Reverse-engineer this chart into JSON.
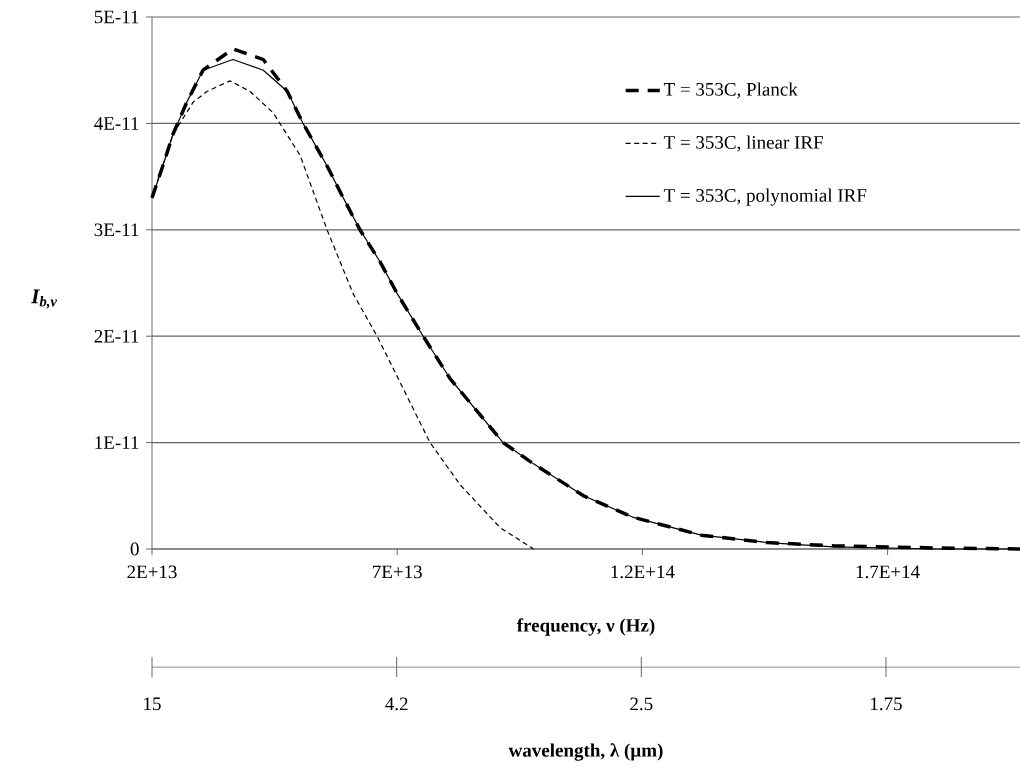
{
  "chart_data": [
    {
      "type": "line",
      "xlabel": "frequency, ν (Hz)",
      "ylabel": "I$_{b,ν}$",
      "xlim": [
        20000000000000.0,
        197000000000000.0
      ],
      "ylim": [
        0,
        5e-11
      ],
      "xticks": [
        {
          "value": 20000000000000.0,
          "label": "2E+13"
        },
        {
          "value": 70000000000000.0,
          "label": "7E+13"
        },
        {
          "value": 120000000000000.0,
          "label": "1.2E+14"
        },
        {
          "value": 170000000000000.0,
          "label": "1.7E+14"
        }
      ],
      "yticks": [
        {
          "value": 0,
          "label": "0"
        },
        {
          "value": 1e-11,
          "label": "1E-11"
        },
        {
          "value": 2e-11,
          "label": "2E-11"
        },
        {
          "value": 3e-11,
          "label": "3E-11"
        },
        {
          "value": 4e-11,
          "label": "4E-11"
        },
        {
          "value": 5e-11,
          "label": "5E-11"
        }
      ],
      "grid": "y",
      "legend": "top right",
      "series": [
        {
          "name": "T = 353C, Planck",
          "color": "#000000",
          "line_style": "dashed",
          "x": [
            20000000000000.0,
            22200000000000.0,
            24300000000000.0,
            27100000000000.0,
            30400000000000.0,
            36500000000000.0,
            42700000000000.0,
            47600000000000.0,
            50800000000000.0,
            55700000000000.0,
            59000000000000.0,
            62400000000000.0,
            66500000000000.0,
            70000000000000.0,
            75300000000000.0,
            80800000000000.0,
            91600000000000.0,
            97800000000000.0,
            108000000000000.0,
            118000000000000.0,
            132000000000000.0,
            145500000000000.0,
            159000000000000.0,
            179500000000000.0,
            197000000000000.0
          ],
          "values": [
            3.3e-11,
            3.6e-11,
            3.9e-11,
            4.2e-11,
            4.5e-11,
            4.7e-11,
            4.6e-11,
            4.3e-11,
            4e-11,
            3.6e-11,
            3.3e-11,
            3e-11,
            2.7e-11,
            2.4e-11,
            2e-11,
            1.6e-11,
            1e-11,
            8e-12,
            5e-12,
            3e-12,
            1.3e-12,
            6e-13,
            3e-13,
            1e-13,
            0
          ]
        },
        {
          "name": "T = 353C, linear IRF",
          "color": "#000000",
          "line_style": "dashed",
          "x": [
            20000000000000.0,
            24300000000000.0,
            28400000000000.0,
            31200000000000.0,
            35900000000000.0,
            40000000000000.0,
            44700000000000.0,
            50200000000000.0,
            55700000000000.0,
            61000000000000.0,
            65900000000000.0,
            76700000000000.0,
            82900000000000.0,
            91000000000000.0,
            97800000000000.0
          ],
          "values": [
            3.3e-11,
            3.9e-11,
            4.2e-11,
            4.3e-11,
            4.4e-11,
            4.3e-11,
            4.1e-11,
            3.7e-11,
            3e-11,
            2.4e-11,
            2e-11,
            1e-11,
            6e-12,
            2e-12,
            0
          ]
        },
        {
          "name": "T = 353C, polynomial IRF",
          "color": "#000000",
          "line_style": "solid",
          "x": [
            20000000000000.0,
            22200000000000.0,
            24300000000000.0,
            27100000000000.0,
            30400000000000.0,
            36500000000000.0,
            42700000000000.0,
            47600000000000.0,
            50800000000000.0,
            55700000000000.0,
            59000000000000.0,
            62400000000000.0,
            66500000000000.0,
            70000000000000.0,
            75300000000000.0,
            80800000000000.0,
            91600000000000.0,
            97800000000000.0,
            108000000000000.0,
            118000000000000.0,
            132000000000000.0,
            145500000000000.0,
            159000000000000.0,
            179500000000000.0,
            197000000000000.0
          ],
          "values": [
            3.3e-11,
            3.6e-11,
            3.9e-11,
            4.2e-11,
            4.5e-11,
            4.6e-11,
            4.5e-11,
            4.3e-11,
            4e-11,
            3.6e-11,
            3.3e-11,
            3e-11,
            2.7e-11,
            2.4e-11,
            2e-11,
            1.6e-11,
            1e-11,
            8e-12,
            5e-12,
            3e-12,
            1.3e-12,
            6e-13,
            2e-13,
            0,
            0
          ]
        }
      ]
    },
    {
      "type": "other",
      "xlabel": "wavelength, λ (µm)",
      "categories": [
        "15",
        "4.2",
        "2.5",
        "1.75"
      ]
    }
  ]
}
